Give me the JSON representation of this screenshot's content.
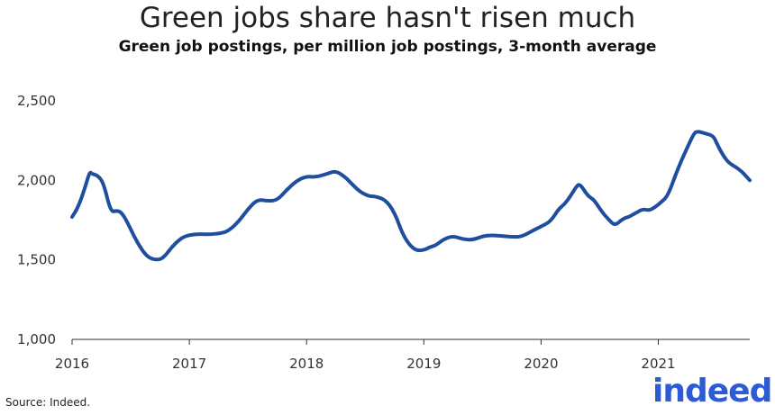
{
  "chart_data": {
    "type": "line",
    "title": "Green jobs share hasn't risen much",
    "subtitle": "Green job postings, per million job postings, 3-month average",
    "xlabel": "",
    "ylabel": "",
    "xlim": [
      2016.0,
      2021.78
    ],
    "ylim": [
      1000,
      2500
    ],
    "yticks": [
      1000,
      1500,
      2000,
      2500
    ],
    "ytick_labels": [
      "1,000",
      "1,500",
      "2,000",
      "2,500"
    ],
    "xticks": [
      2016,
      2017,
      2018,
      2019,
      2020,
      2021
    ],
    "xtick_labels": [
      "2016",
      "2017",
      "2018",
      "2019",
      "2020",
      "2021"
    ],
    "series": [
      {
        "name": "Green job postings",
        "color": "#1f4e9e",
        "x": [
          2016.0,
          2016.05,
          2016.1,
          2016.15,
          2016.17,
          2016.22,
          2016.27,
          2016.33,
          2016.38,
          2016.42,
          2016.47,
          2016.52,
          2016.58,
          2016.63,
          2016.68,
          2016.75,
          2016.8,
          2016.85,
          2016.92,
          2016.97,
          2017.03,
          2017.1,
          2017.18,
          2017.27,
          2017.33,
          2017.42,
          2017.5,
          2017.58,
          2017.67,
          2017.75,
          2017.83,
          2017.92,
          2018.0,
          2018.08,
          2018.17,
          2018.25,
          2018.33,
          2018.37,
          2018.45,
          2018.53,
          2018.58,
          2018.67,
          2018.75,
          2018.83,
          2018.92,
          2019.0,
          2019.05,
          2019.1,
          2019.17,
          2019.25,
          2019.33,
          2019.42,
          2019.5,
          2019.58,
          2019.67,
          2019.75,
          2019.83,
          2019.92,
          2020.0,
          2020.08,
          2020.15,
          2020.2,
          2020.25,
          2020.3,
          2020.33,
          2020.4,
          2020.45,
          2020.52,
          2020.58,
          2020.63,
          2020.7,
          2020.75,
          2020.82,
          2020.87,
          2020.92,
          2020.97,
          2021.02,
          2021.08,
          2021.15,
          2021.2,
          2021.25,
          2021.3,
          2021.33,
          2021.4,
          2021.47,
          2021.5,
          2021.55,
          2021.6,
          2021.67,
          2021.72,
          2021.78
        ],
        "values": [
          1770,
          1830,
          1930,
          2055,
          2040,
          2030,
          1980,
          1800,
          1810,
          1800,
          1740,
          1660,
          1580,
          1530,
          1505,
          1500,
          1530,
          1580,
          1630,
          1650,
          1660,
          1662,
          1660,
          1668,
          1680,
          1740,
          1820,
          1880,
          1870,
          1875,
          1940,
          2000,
          2025,
          2020,
          2040,
          2060,
          2020,
          1990,
          1930,
          1900,
          1900,
          1880,
          1800,
          1640,
          1560,
          1560,
          1580,
          1590,
          1630,
          1650,
          1630,
          1625,
          1650,
          1655,
          1650,
          1645,
          1645,
          1680,
          1710,
          1740,
          1820,
          1850,
          1900,
          1960,
          1980,
          1900,
          1880,
          1800,
          1750,
          1715,
          1760,
          1770,
          1800,
          1820,
          1810,
          1830,
          1860,
          1900,
          2040,
          2130,
          2210,
          2290,
          2310,
          2295,
          2280,
          2230,
          2160,
          2110,
          2080,
          2050,
          2000
        ]
      }
    ]
  },
  "footer": {
    "source": "Source: Indeed.",
    "logo_text": "indeed"
  },
  "colors": {
    "line": "#1f4e9e",
    "logo": "#2d5bd6",
    "axis": "#333333"
  }
}
